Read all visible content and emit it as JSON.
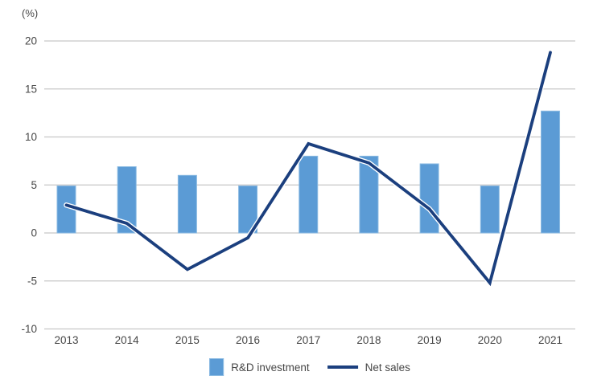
{
  "chart_data": {
    "type": "combo-bar-line",
    "unit_label": "(%)",
    "categories": [
      "2013",
      "2014",
      "2015",
      "2016",
      "2017",
      "2018",
      "2019",
      "2020",
      "2021"
    ],
    "series": [
      {
        "name": "R&D investment",
        "type": "bar",
        "color": "#5B9BD5",
        "border_color": "#8ABAE2",
        "values": [
          4.9,
          6.9,
          6.0,
          4.9,
          8.0,
          8.0,
          7.2,
          4.9,
          12.7
        ]
      },
      {
        "name": "Net sales",
        "type": "line",
        "color": "#1B3F7E",
        "halo_color": "#FFFFFF",
        "values": [
          2.9,
          1.0,
          -3.8,
          -0.5,
          9.3,
          7.3,
          2.5,
          -5.2,
          18.8
        ]
      }
    ],
    "y_axis": {
      "min": -10,
      "max": 20,
      "step": 5,
      "ticks": [
        20,
        15,
        10,
        5,
        0,
        -5,
        -10
      ]
    },
    "grid": true,
    "legend_position": "bottom-center",
    "colors": {
      "grid": "#C7C7C7",
      "text": "#474747",
      "background": "#FFFFFF"
    }
  }
}
